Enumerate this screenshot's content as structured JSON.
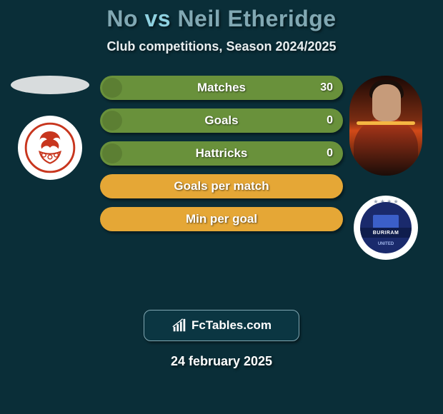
{
  "header": {
    "player1": "No",
    "vs": "vs",
    "player2": "Neil Etheridge"
  },
  "subtitle": "Club competitions, Season 2024/2025",
  "stats": [
    {
      "label": "Matches",
      "value": "30",
      "bg": "#69913b",
      "knob": true
    },
    {
      "label": "Goals",
      "value": "0",
      "bg": "#69913b",
      "knob": true
    },
    {
      "label": "Hattricks",
      "value": "0",
      "bg": "#69913b",
      "knob": true
    },
    {
      "label": "Goals per match",
      "value": "",
      "bg": "#e5a736",
      "knob": false
    },
    {
      "label": "Min per goal",
      "value": "",
      "bg": "#e5a736",
      "knob": false
    }
  ],
  "branding": {
    "text": "FcTables.com"
  },
  "date": "24 february 2025",
  "club_left": {
    "name": "emblem-bird",
    "stroke": "#c8361e",
    "fill": "#ffffff"
  },
  "club_right": {
    "name": "buriram-united",
    "band_text": "BURIRAM",
    "utd_text": "UNITED"
  },
  "text_color": "#e8eef0"
}
